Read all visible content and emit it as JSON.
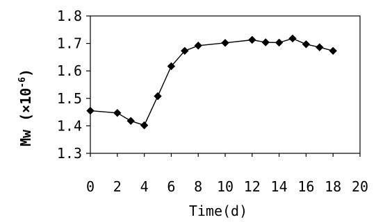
{
  "chart_data": {
    "type": "line",
    "title": "",
    "xlabel": "Time(d)",
    "ylabel": {
      "main": "Mw (×10",
      "exponent": "-6",
      "close": ")"
    },
    "xlim": [
      0,
      20
    ],
    "ylim": [
      1.3,
      1.8
    ],
    "xticks": [
      0,
      2,
      4,
      6,
      8,
      10,
      12,
      14,
      16,
      18,
      20
    ],
    "xtick_labels": [
      "0",
      "2",
      "4",
      "6",
      "8",
      "10",
      "12",
      "14",
      "16",
      "18",
      "20"
    ],
    "yticks": [
      1.3,
      1.4,
      1.5,
      1.6,
      1.7,
      1.8
    ],
    "ytick_labels": [
      "1.3",
      "1.4",
      "1.5",
      "1.6",
      "1.7",
      "1.8"
    ],
    "grid": false,
    "legend": "none",
    "line_color": "#000000",
    "marker": "diamond",
    "series": [
      {
        "x": [
          0,
          2,
          3,
          4,
          5,
          6,
          7,
          8,
          10,
          12,
          13,
          14,
          15,
          16,
          17,
          18
        ],
        "values": [
          1.455,
          1.447,
          1.418,
          1.402,
          1.508,
          1.617,
          1.673,
          1.692,
          1.702,
          1.713,
          1.704,
          1.703,
          1.718,
          1.697,
          1.686,
          1.673
        ]
      }
    ]
  }
}
